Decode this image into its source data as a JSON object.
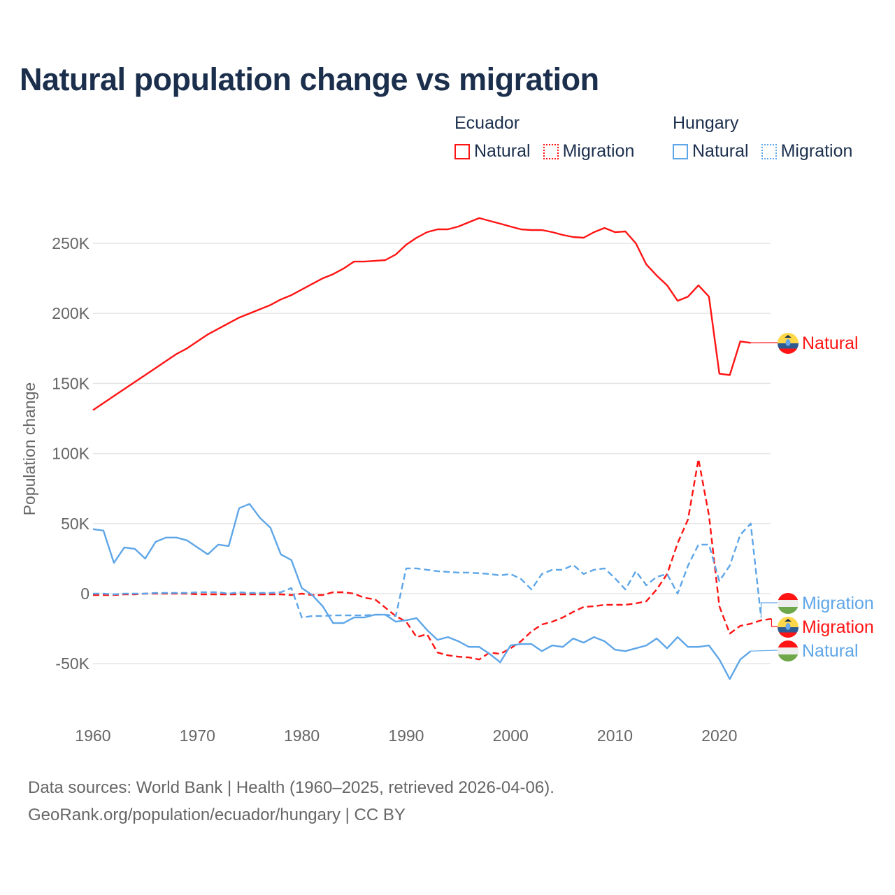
{
  "title": "Natural population change vs migration",
  "legend": {
    "groups": [
      {
        "name": "Ecuador",
        "items": [
          {
            "label": "Natural",
            "style": "solid"
          },
          {
            "label": "Migration",
            "style": "dotted"
          }
        ],
        "color": "#ff1414"
      },
      {
        "name": "Hungary",
        "items": [
          {
            "label": "Natural",
            "style": "solid"
          },
          {
            "label": "Migration",
            "style": "dotted"
          }
        ],
        "color": "#5ea6e8"
      }
    ]
  },
  "footer": {
    "line1": "Data sources: World Bank | Health (1960–2025, retrieved 2026-04-06).",
    "line2": "GeoRank.org/population/ecuador/hungary | CC BY"
  },
  "chart_data": {
    "type": "line",
    "title": "Natural population change vs migration",
    "xlabel": "",
    "ylabel": "Population change",
    "xlim": [
      1960,
      2025
    ],
    "ylim": [
      -75000,
      290000
    ],
    "x_ticks": [
      1960,
      1970,
      1980,
      1990,
      2000,
      2010,
      2020
    ],
    "y_ticks": [
      -50000,
      0,
      50000,
      100000,
      150000,
      200000,
      250000
    ],
    "y_tick_labels": [
      "-50K",
      "0",
      "50K",
      "100K",
      "150K",
      "200K",
      "250K"
    ],
    "grid": true,
    "x_start": 1960,
    "series": [
      {
        "name": "Ecuador Natural",
        "end_label": "Natural",
        "country": "Ecuador",
        "color": "#ff1414",
        "dash": "solid",
        "values": [
          131,
          136,
          141,
          146,
          151,
          156,
          161,
          166,
          171,
          175,
          180,
          185,
          189,
          193,
          197,
          200,
          203,
          206,
          210,
          213,
          217,
          221,
          225,
          228,
          232,
          237,
          237,
          237.5,
          238,
          242,
          249,
          254,
          258,
          260,
          260,
          262,
          265,
          268,
          266,
          264,
          262,
          260,
          259.5,
          259.5,
          258,
          256,
          254.5,
          254,
          258,
          261,
          258,
          258.5,
          250,
          235,
          227,
          220,
          209,
          212,
          220,
          212,
          157,
          156,
          180,
          179,
          null,
          null
        ]
      },
      {
        "name": "Ecuador Migration",
        "end_label": "Migration",
        "country": "Ecuador",
        "color": "#ff1414",
        "dash": "dashed",
        "values": [
          -1,
          -1,
          -1,
          -0.5,
          -0.5,
          0,
          0,
          0,
          0,
          0,
          -0.5,
          -0.5,
          -0.5,
          -0.5,
          -0.5,
          -0.5,
          -0.5,
          -0.5,
          -0.5,
          -1,
          0,
          -1,
          -1,
          1,
          1,
          0,
          -3,
          -4,
          -10,
          -16,
          -20,
          -31,
          -29,
          -42,
          -44,
          -45,
          -45.5,
          -47,
          -42,
          -43,
          -39,
          -34,
          -27,
          -22,
          -20,
          -17,
          -13,
          -9.5,
          -9,
          -8,
          -8,
          -8,
          -7,
          -5.5,
          3,
          14,
          36,
          53,
          96,
          56,
          -9,
          -28.5,
          -23,
          -21.5,
          -19,
          -18
        ]
      },
      {
        "name": "Hungary Natural",
        "end_label": "Natural",
        "country": "Hungary",
        "color": "#5ea6e8",
        "dash": "solid",
        "values": [
          46,
          45,
          22,
          33,
          32,
          25,
          37,
          40,
          40,
          38,
          33,
          28,
          35,
          34,
          61,
          64,
          54,
          47,
          28,
          24,
          4,
          -1,
          -9,
          -21,
          -21,
          -17,
          -17,
          -15,
          -15,
          -20,
          -19,
          -17.5,
          -26,
          -33,
          -31,
          -34,
          -38,
          -38,
          -43,
          -49,
          -37,
          -36,
          -36,
          -41,
          -37,
          -38,
          -32,
          -35,
          -31,
          -34,
          -40,
          -41,
          -39,
          -37,
          -32,
          -39,
          -31,
          -38,
          -38,
          -37,
          -47,
          -61,
          -47,
          -41,
          null,
          null
        ]
      },
      {
        "name": "Hungary Migration",
        "end_label": "Migration",
        "country": "Hungary",
        "color": "#5ea6e8",
        "dash": "dashed",
        "values": [
          0,
          0,
          -0.5,
          0,
          0,
          0,
          0.5,
          0.5,
          0.5,
          0.5,
          1,
          1,
          1,
          0,
          1,
          0.5,
          0.5,
          0.5,
          1,
          4,
          -17,
          -16,
          -16,
          -15.5,
          -15.5,
          -15.5,
          -15.5,
          -15,
          -15,
          -16,
          18,
          18,
          17,
          16,
          15.5,
          15,
          15,
          14.5,
          14,
          13,
          14,
          10.5,
          3,
          14,
          17,
          17,
          20.5,
          14,
          17,
          18,
          11,
          3,
          16,
          6,
          12,
          14,
          0,
          20,
          35,
          35,
          9,
          20,
          42,
          50,
          -17,
          null
        ]
      }
    ]
  }
}
